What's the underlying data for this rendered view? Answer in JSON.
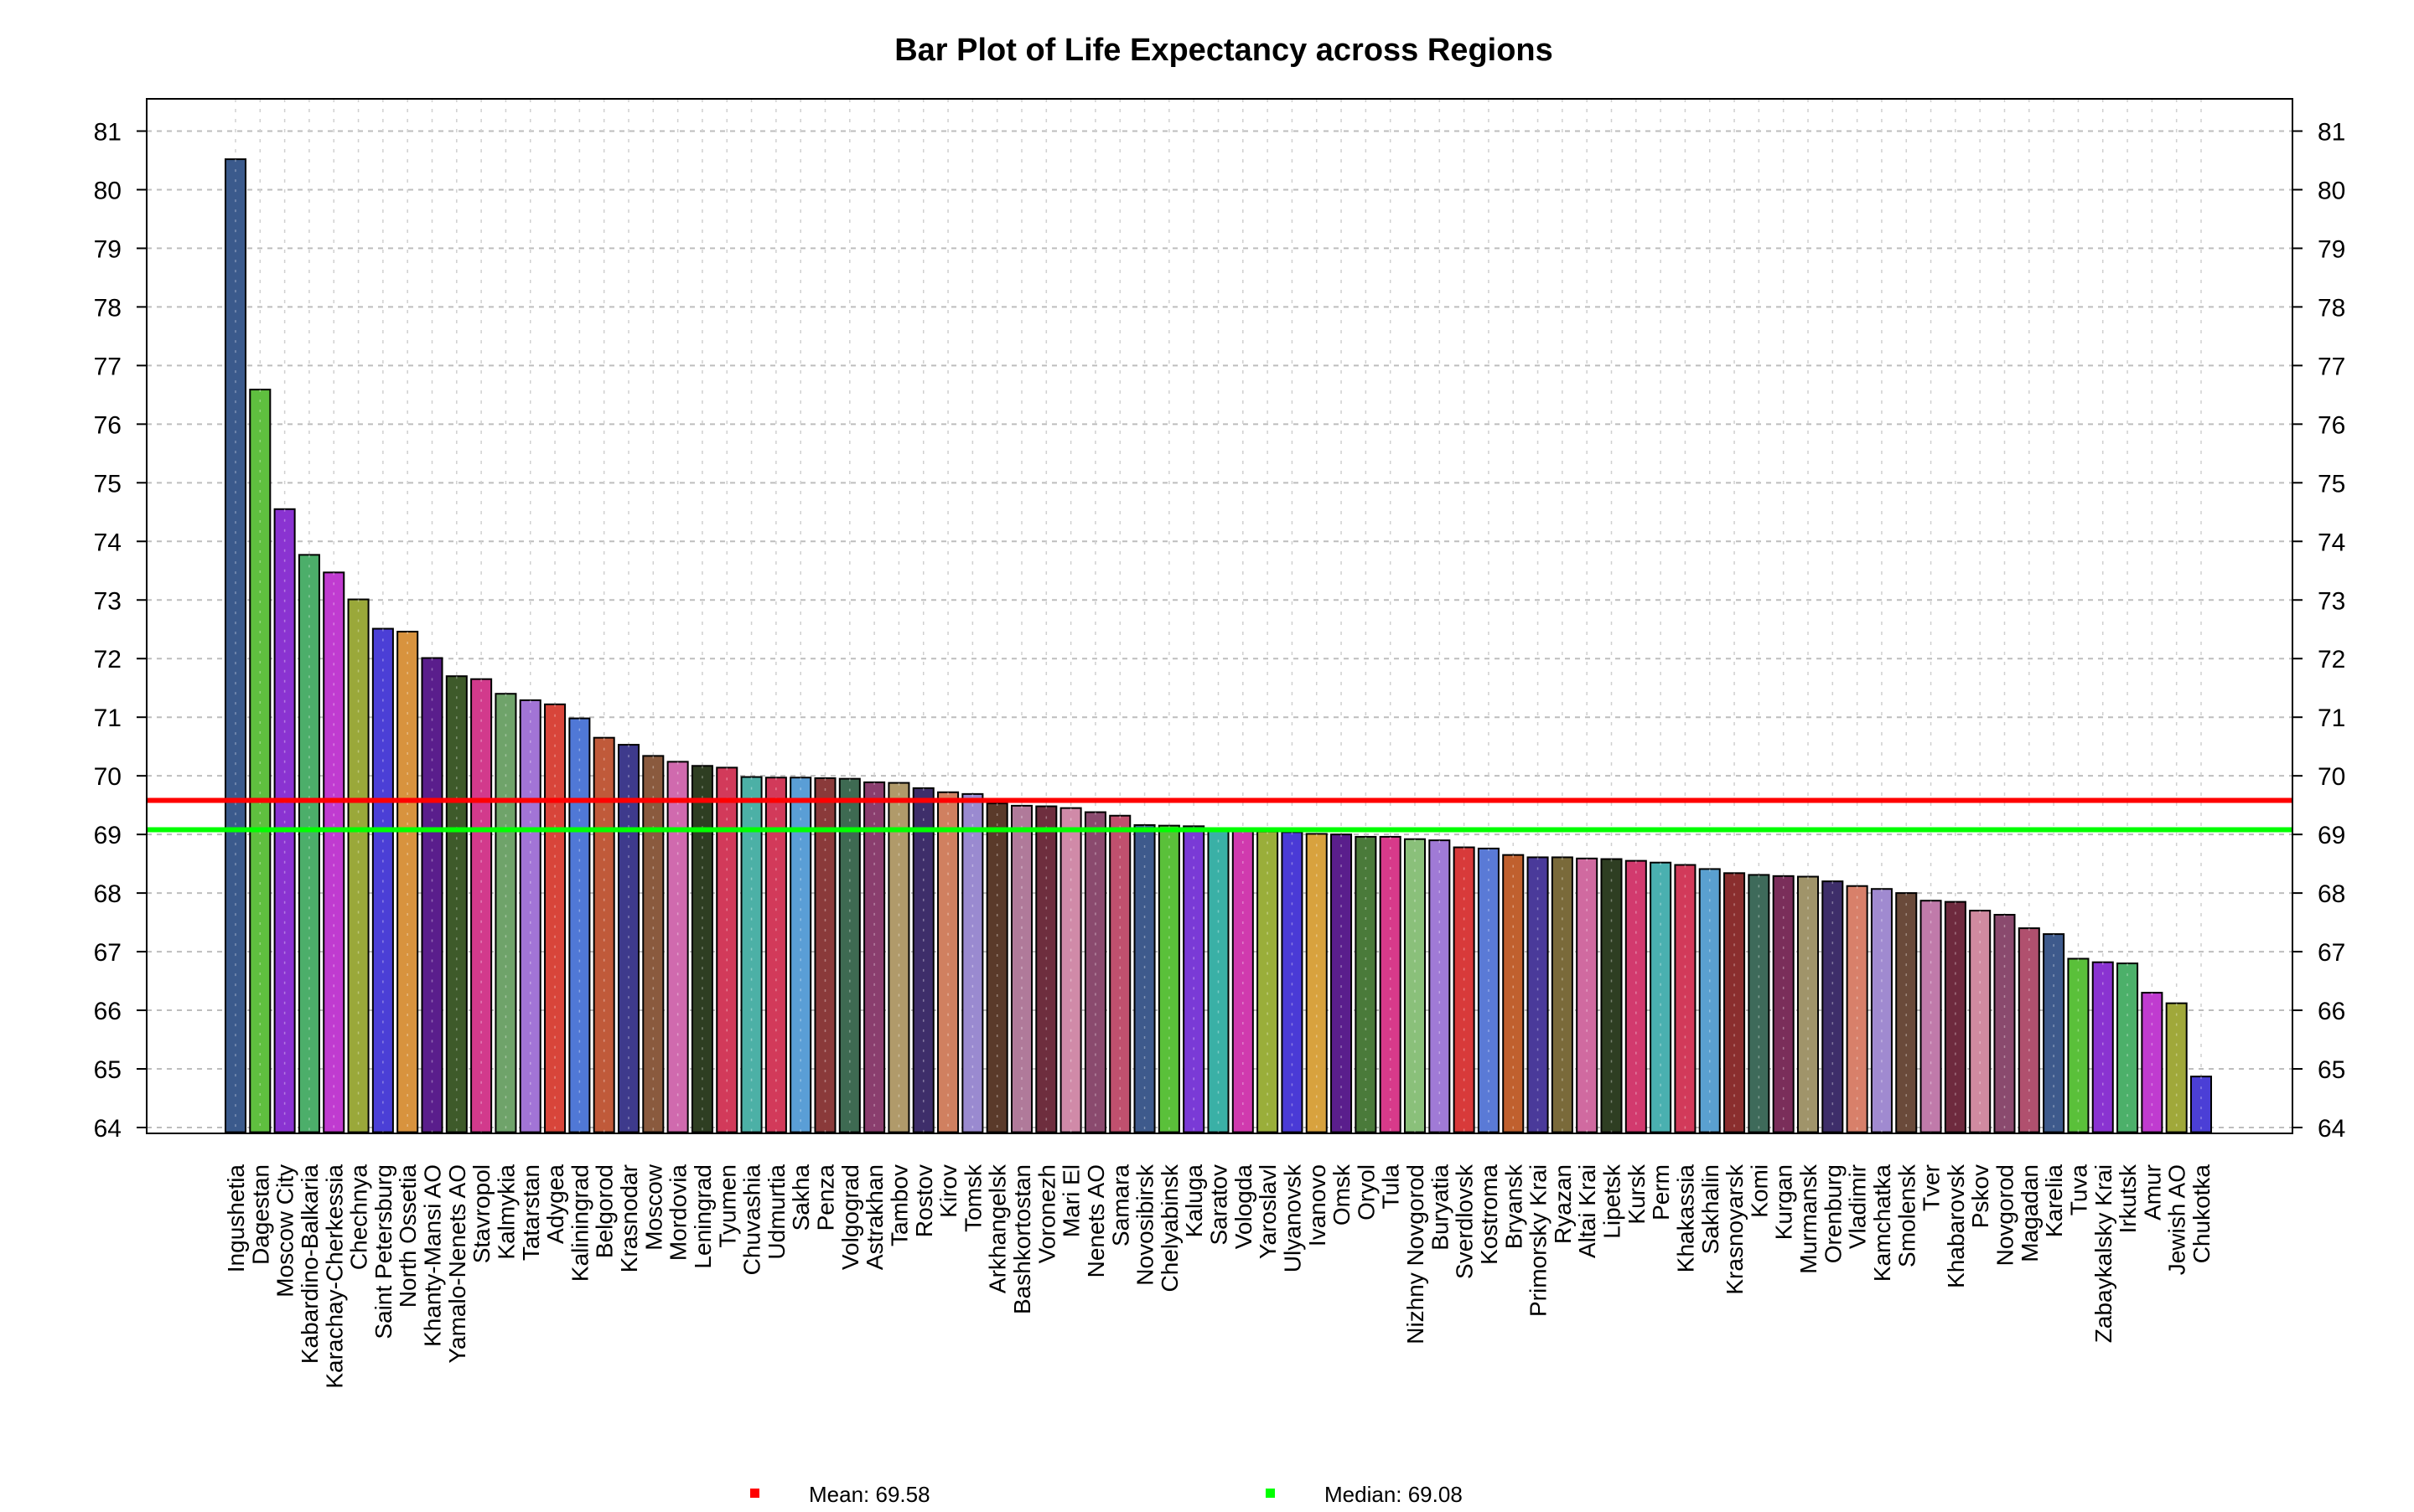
{
  "chart_data": {
    "type": "bar",
    "title": "Bar Plot of Life Expectancy across Regions",
    "xlabel": "",
    "ylabel": "",
    "ylim": [
      63.9,
      81.55
    ],
    "y_ticks": [
      "64",
      "65",
      "66",
      "67",
      "68",
      "69",
      "70",
      "71",
      "72",
      "73",
      "74",
      "75",
      "76",
      "77",
      "78",
      "79",
      "80",
      "81"
    ],
    "grid": true,
    "categories": [
      "Ingushetia",
      "Dagestan",
      "Moscow City",
      "Kabardino-Balkaria",
      "Karachay-Cherkessia",
      "Chechnya",
      "Saint Petersburg",
      "North Ossetia",
      "Khanty-Mansi AO",
      "Yamalo-Nenets AO",
      "Stavropol",
      "Kalmykia",
      "Tatarstan",
      "Adygea",
      "Kaliningrad",
      "Belgorod",
      "Krasnodar",
      "Moscow",
      "Mordovia",
      "Leningrad",
      "Tyumen",
      "Chuvashia",
      "Udmurtia",
      "Sakha",
      "Penza",
      "Volgograd",
      "Astrakhan",
      "Tambov",
      "Rostov",
      "Kirov",
      "Tomsk",
      "Arkhangelsk",
      "Bashkortostan",
      "Voronezh",
      "Mari El",
      "Nenets AO",
      "Samara",
      "Novosibirsk",
      "Chelyabinsk",
      "Kaluga",
      "Saratov",
      "Vologda",
      "Yaroslavl",
      "Ulyanovsk",
      "Ivanovo",
      "Omsk",
      "Oryol",
      "Tula",
      "Nizhny Novgorod",
      "Buryatia",
      "Sverdlovsk",
      "Kostroma",
      "Bryansk",
      "Primorsky Krai",
      "Ryazan",
      "Altai Krai",
      "Lipetsk",
      "Kursk",
      "Perm",
      "Khakassia",
      "Sakhalin",
      "Krasnoyarsk",
      "Komi",
      "Kurgan",
      "Murmansk",
      "Orenburg",
      "Vladimir",
      "Kamchatka",
      "Smolensk",
      "Tver",
      "Khabarovsk",
      "Pskov",
      "Novgorod",
      "Magadan",
      "Karelia",
      "Tuva",
      "Zabaykalsky Krai",
      "Irkutsk",
      "Amur",
      "Jewish AO",
      "Chukotka"
    ],
    "values": [
      80.52,
      76.59,
      74.55,
      73.77,
      73.47,
      73.01,
      72.51,
      72.46,
      72.01,
      71.7,
      71.65,
      71.4,
      71.29,
      71.22,
      70.98,
      70.65,
      70.53,
      70.34,
      70.24,
      70.17,
      70.14,
      69.98,
      69.97,
      69.97,
      69.96,
      69.95,
      69.89,
      69.88,
      69.79,
      69.72,
      69.69,
      69.53,
      69.49,
      69.48,
      69.45,
      69.38,
      69.32,
      69.16,
      69.15,
      69.14,
      69.08,
      69.06,
      69.05,
      69.04,
      69.01,
      69.0,
      68.96,
      68.96,
      68.92,
      68.9,
      68.78,
      68.76,
      68.65,
      68.61,
      68.61,
      68.59,
      68.58,
      68.55,
      68.52,
      68.48,
      68.41,
      68.34,
      68.31,
      68.29,
      68.28,
      68.2,
      68.12,
      68.07,
      68.0,
      67.87,
      67.85,
      67.7,
      67.63,
      67.4,
      67.3,
      66.88,
      66.82,
      66.8,
      66.3,
      66.12,
      64.87
    ],
    "bar_colors": [
      "#3B5A8C",
      "#5FBF3F",
      "#8A33D1",
      "#4CAE6A",
      "#C03BD0",
      "#9AA83A",
      "#4B3FD6",
      "#D8933E",
      "#5A1E8C",
      "#3E5A2A",
      "#D23A8C",
      "#6FA36A",
      "#A274D6",
      "#D8453A",
      "#5078D6",
      "#C05A3A",
      "#3E3A8C",
      "#8A5A3E",
      "#D06AAE",
      "#2E3E22",
      "#D23A5A",
      "#4CB0A6",
      "#D23A5A",
      "#5A9ED6",
      "#8A3A3A",
      "#3E6A52",
      "#8A3E6E",
      "#B09A6A",
      "#3E2E6A",
      "#D08060",
      "#9A8AD0",
      "#5A3A2A",
      "#B07A9A",
      "#6E2E3E",
      "#D08AA8",
      "#8A4A6E",
      "#C0506E",
      "#3E5A8C",
      "#5AC03A",
      "#7A3AD6",
      "#3AB0A6",
      "#D03AAE",
      "#9AAE3A",
      "#4A3AD6",
      "#D8A23E",
      "#5A1E8C",
      "#4A7A3A",
      "#D83A8A",
      "#8AC07A",
      "#A07AD6",
      "#D83A3A",
      "#5A7AD6",
      "#C0602E",
      "#4A3A9A",
      "#7A6A3A",
      "#D06AA0",
      "#2E3E22",
      "#D23A6E",
      "#4AB0B0",
      "#D23A5A",
      "#5AA0D0",
      "#8A2E2E",
      "#3E6A5A",
      "#7A2E5A",
      "#A0946A",
      "#3E2E6A",
      "#D8806A",
      "#A08AD0",
      "#6A4A3A",
      "#C07AAA",
      "#6E2A3E",
      "#D08AA0",
      "#8A4A6E",
      "#B0506E",
      "#3E5A8C",
      "#5AC03A",
      "#8A33D1",
      "#4CB06A",
      "#C03BD0",
      "#A0A83A",
      "#4B3FD6"
    ],
    "reference_lines": [
      {
        "name": "Mean",
        "value": 69.58,
        "color": "#FF0000"
      },
      {
        "name": "Median",
        "value": 69.08,
        "color": "#00FF00"
      }
    ],
    "legend": [
      {
        "label": "Mean: 69.58",
        "color": "#FF0000"
      },
      {
        "label": "Median: 69.08",
        "color": "#00FF00"
      }
    ],
    "legend_position": "bottom"
  }
}
